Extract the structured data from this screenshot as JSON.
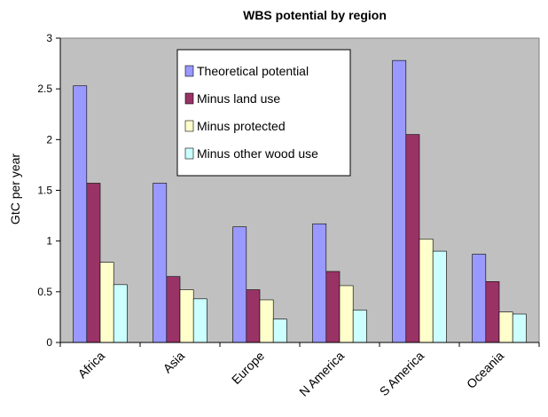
{
  "chart_data": {
    "type": "bar",
    "title": "WBS potential by region",
    "xlabel": "",
    "ylabel": "GtC per year",
    "ylim": [
      0,
      3
    ],
    "yticks": [
      "0",
      "0.5",
      "1",
      "1.5",
      "2",
      "2.5",
      "3"
    ],
    "grid": false,
    "legend_position": "top-center",
    "plot_background": "#c0c0c0",
    "categories": [
      "Africa",
      "Asia",
      "Europe",
      "N America",
      "S America",
      "Oceania"
    ],
    "series": [
      {
        "name": "Theoretical potential",
        "color": "#9999ff",
        "values": [
          2.53,
          1.57,
          1.14,
          1.17,
          2.78,
          0.87
        ]
      },
      {
        "name": "Minus land use",
        "color": "#993366",
        "values": [
          1.57,
          0.65,
          0.52,
          0.7,
          2.05,
          0.6
        ]
      },
      {
        "name": "Minus protected",
        "color": "#ffffcc",
        "values": [
          0.79,
          0.52,
          0.42,
          0.56,
          1.02,
          0.3
        ]
      },
      {
        "name": "Minus other wood use",
        "color": "#ccffff",
        "values": [
          0.57,
          0.43,
          0.23,
          0.32,
          0.9,
          0.28
        ]
      }
    ]
  }
}
